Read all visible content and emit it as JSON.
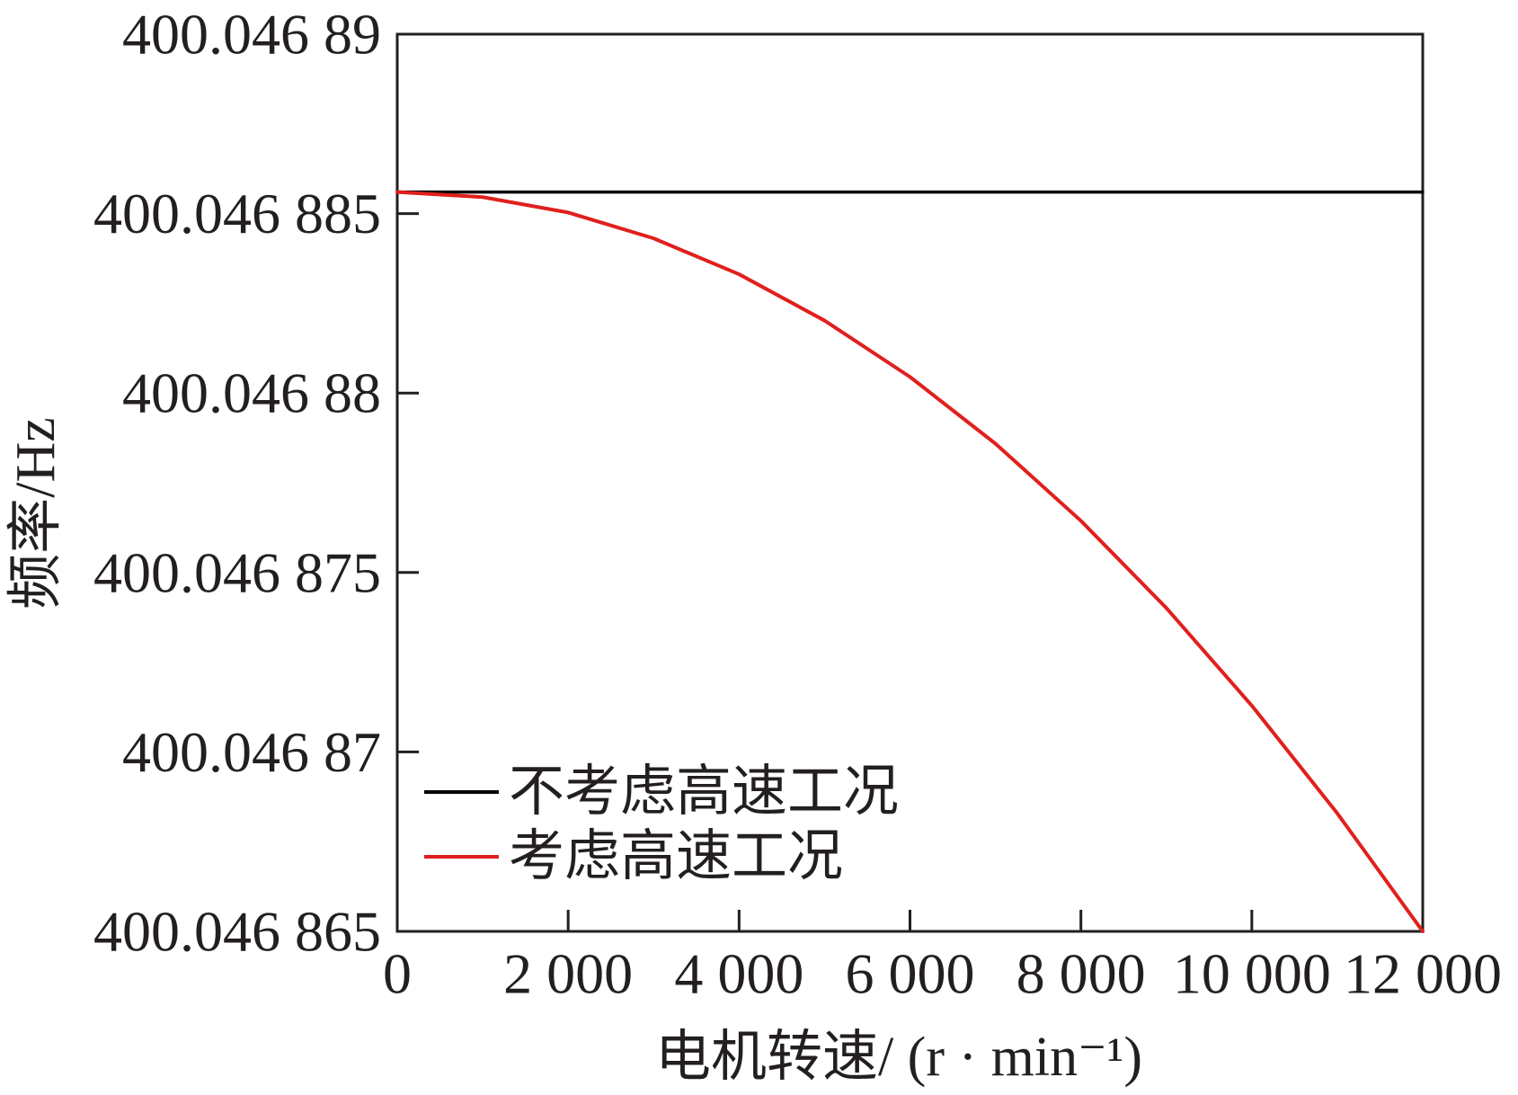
{
  "chart_data": {
    "type": "line",
    "xlabel": "电机转速/ (r · min⁻¹)",
    "ylabel": "频率/Hz",
    "xlim": [
      0,
      12000
    ],
    "ylim": [
      400.046865,
      400.04689
    ],
    "grid": false,
    "x_ticks": [
      {
        "value": 0,
        "label": "0"
      },
      {
        "value": 2000,
        "label": "2 000"
      },
      {
        "value": 4000,
        "label": "4 000"
      },
      {
        "value": 6000,
        "label": "6 000"
      },
      {
        "value": 8000,
        "label": "8 000"
      },
      {
        "value": 10000,
        "label": "10 000"
      },
      {
        "value": 12000,
        "label": "12 000"
      }
    ],
    "y_ticks": [
      {
        "value": 400.046865,
        "label": "400.046 865"
      },
      {
        "value": 400.04687,
        "label": "400.046 87"
      },
      {
        "value": 400.046875,
        "label": "400.046 875"
      },
      {
        "value": 400.04688,
        "label": "400.046 88"
      },
      {
        "value": 400.046885,
        "label": "400.046 885"
      },
      {
        "value": 400.04689,
        "label": "400.046 89"
      }
    ],
    "legend": {
      "placement": "lower-left"
    },
    "series": [
      {
        "name": "不考虑高速工况",
        "color": "#000000",
        "x": [
          0,
          12000
        ],
        "y": [
          400.0468856,
          400.0468856
        ]
      },
      {
        "name": "考虑高速工况",
        "color": "#e0201e",
        "x": [
          0,
          1000,
          2000,
          3000,
          4000,
          5000,
          6000,
          7000,
          8000,
          9000,
          10000,
          11000,
          12000
        ],
        "y": [
          400.0468856,
          400.04688546,
          400.04688503,
          400.04688431,
          400.04688331,
          400.04688202,
          400.04688045,
          400.04687859,
          400.04687644,
          400.04687401,
          400.04687129,
          400.04686829,
          400.046865
        ]
      }
    ]
  }
}
